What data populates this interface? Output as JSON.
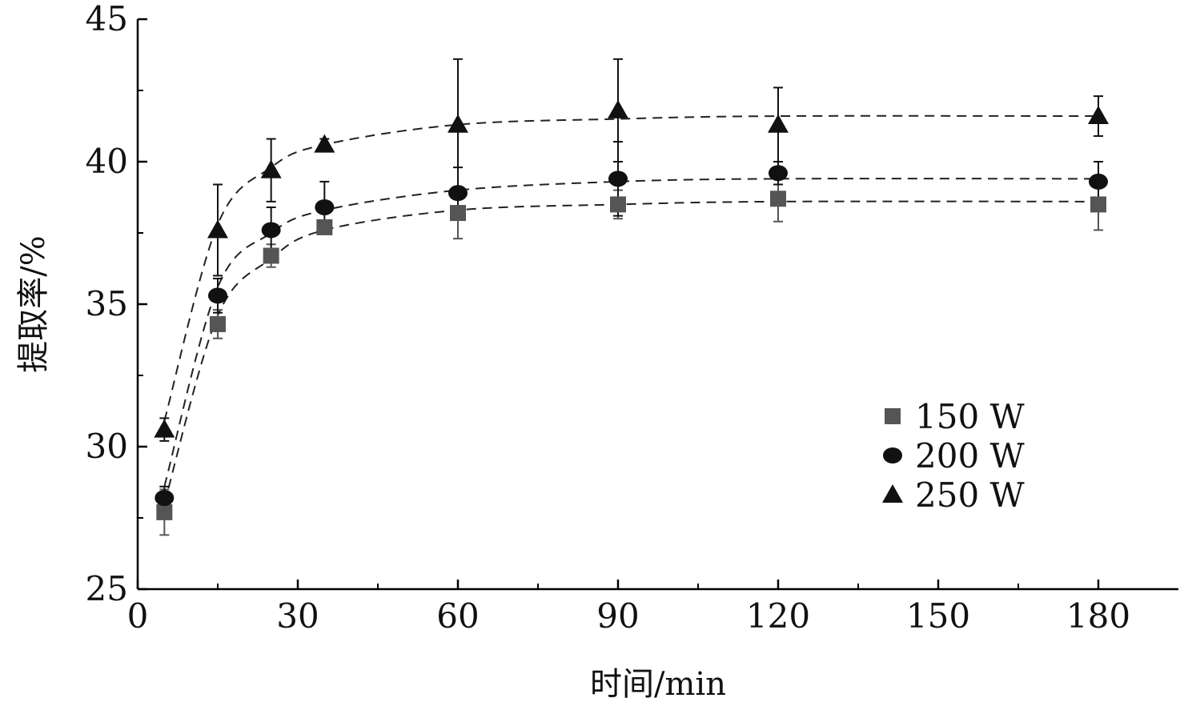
{
  "chart_data": {
    "type": "scatter",
    "xlabel": "时间/min",
    "ylabel": "提取率/%",
    "xlim": [
      0,
      195
    ],
    "ylim": [
      25,
      45
    ],
    "xticks": [
      0,
      30,
      60,
      90,
      120,
      150,
      180
    ],
    "yticks": [
      25,
      30,
      35,
      40,
      45
    ],
    "legend": "right",
    "grid": false,
    "series": [
      {
        "name": "150 W",
        "marker": "square",
        "color": "#555555",
        "x": [
          5,
          15,
          25,
          35,
          60,
          90,
          120,
          180
        ],
        "y": [
          27.7,
          34.3,
          36.7,
          37.7,
          38.2,
          38.5,
          38.7,
          38.5
        ],
        "error": [
          0.8,
          0.5,
          0.4,
          0.2,
          0.9,
          0.5,
          0.8,
          0.9
        ],
        "fit": [
          28.0,
          34.6,
          36.6,
          37.6,
          38.3,
          38.5,
          38.6,
          38.6
        ]
      },
      {
        "name": "200 W",
        "marker": "circle",
        "color": "#111111",
        "x": [
          5,
          15,
          25,
          35,
          60,
          90,
          120,
          180
        ],
        "y": [
          28.2,
          35.3,
          37.6,
          38.4,
          38.9,
          39.4,
          39.6,
          39.3
        ],
        "error": [
          0.4,
          0.6,
          0.8,
          0.9,
          0.9,
          1.3,
          0.4,
          0.7
        ],
        "fit": [
          28.6,
          35.6,
          37.5,
          38.3,
          39.0,
          39.3,
          39.4,
          39.4
        ]
      },
      {
        "name": "250 W",
        "marker": "triangle",
        "color": "#111111",
        "x": [
          5,
          15,
          25,
          35,
          60,
          90,
          120,
          180
        ],
        "y": [
          30.6,
          37.6,
          39.7,
          40.6,
          41.3,
          41.8,
          41.3,
          41.6
        ],
        "error": [
          0.4,
          1.6,
          1.1,
          0.2,
          2.3,
          1.8,
          1.3,
          0.7
        ],
        "fit": [
          30.9,
          37.8,
          39.8,
          40.6,
          41.3,
          41.5,
          41.6,
          41.6
        ]
      }
    ]
  }
}
